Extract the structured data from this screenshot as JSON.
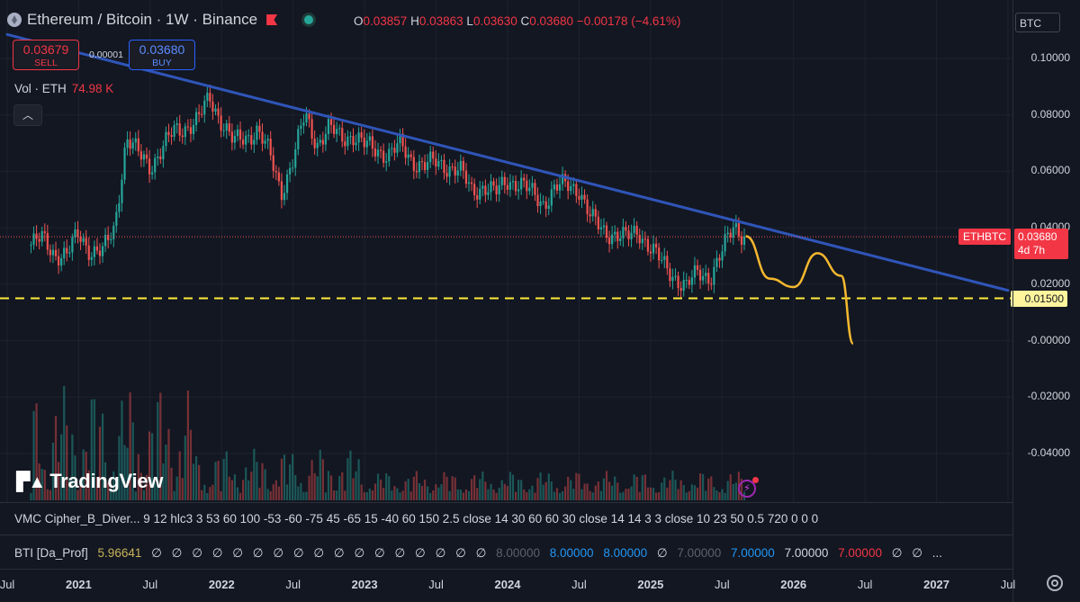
{
  "header": {
    "symbol": "Ethereum",
    "separator": "/",
    "quote": "Bitcoin",
    "interval": "· 1W · Binance",
    "ohlc": {
      "o_label": "O",
      "o": "0.03857",
      "h_label": "H",
      "h": "0.03863",
      "l_label": "L",
      "l": "0.03630",
      "c_label": "C",
      "c": "0.03680",
      "change": "−0.00178 (−4.61%)"
    }
  },
  "trade": {
    "sell_price": "0.03679",
    "sell_label": "SELL",
    "spread": "0.00001",
    "buy_price": "0.03680",
    "buy_label": "BUY"
  },
  "volume": {
    "label": "Vol · ETH",
    "value": "74.98 K"
  },
  "currency_button": "BTC",
  "price_axis": [
    "0.10000",
    "0.08000",
    "0.06000",
    "0.04000",
    "0.02000",
    "-0.00000",
    "-0.02000",
    "-0.04000"
  ],
  "tags": {
    "symbol": "ETHBTC",
    "price": "0.03680",
    "countdown": "4d 7h",
    "support": "0.01500"
  },
  "watermark": "TradingView",
  "indicators": {
    "vmc": "VMC Cipher_B_Diver... 9 12 hlc3 3 53 60 100 -53 -60 -75 45 -65 15 -40 60 150 2.5 close 14 30 60 60 30 close 14 14 3 3 close 10 23 50 0.5 720 0 0 0",
    "bti_name": "BTI [Da_Prof]",
    "bti_first": "5.96641",
    "bti_na": "∅",
    "bti_v1": "8.00000",
    "bti_v2": "8.00000",
    "bti_v3": "8.00000",
    "bti_v4": "7.00000",
    "bti_v5": "7.00000",
    "bti_v6": "7.00000",
    "bti_v7": "7.00000",
    "bti_more": "..."
  },
  "time_axis": [
    {
      "label": "Jul",
      "bold": false
    },
    {
      "label": "2021",
      "bold": true
    },
    {
      "label": "Jul",
      "bold": false
    },
    {
      "label": "2022",
      "bold": true
    },
    {
      "label": "Jul",
      "bold": false
    },
    {
      "label": "2023",
      "bold": true
    },
    {
      "label": "Jul",
      "bold": false
    },
    {
      "label": "2024",
      "bold": true
    },
    {
      "label": "Jul",
      "bold": false
    },
    {
      "label": "2025",
      "bold": true
    },
    {
      "label": "Jul",
      "bold": false
    },
    {
      "label": "2026",
      "bold": true
    },
    {
      "label": "Jul",
      "bold": false
    },
    {
      "label": "2027",
      "bold": true
    },
    {
      "label": "Jul",
      "bold": false
    }
  ],
  "colors": {
    "up": "#26a69a",
    "down": "#ef5350",
    "trendline": "#2f55b8",
    "support": "#ffeb3b",
    "projection": "#f5b82e",
    "background": "#131722"
  },
  "chart_data": {
    "type": "candlestick",
    "title": "Ethereum / Bitcoin · 1W · Binance",
    "ylim": [
      -0.05,
      0.11
    ],
    "x_range": [
      "2020-07",
      "2027-07"
    ],
    "close_series": [
      {
        "t": "2020-09",
        "v": 0.034
      },
      {
        "t": "2020-10",
        "v": 0.036
      },
      {
        "t": "2020-11",
        "v": 0.031
      },
      {
        "t": "2020-12",
        "v": 0.03
      },
      {
        "t": "2021-01",
        "v": 0.038
      },
      {
        "t": "2021-02",
        "v": 0.032
      },
      {
        "t": "2021-03",
        "v": 0.031
      },
      {
        "t": "2021-04",
        "v": 0.04
      },
      {
        "t": "2021-05",
        "v": 0.072
      },
      {
        "t": "2021-06",
        "v": 0.066
      },
      {
        "t": "2021-07",
        "v": 0.062
      },
      {
        "t": "2021-08",
        "v": 0.068
      },
      {
        "t": "2021-09",
        "v": 0.074
      },
      {
        "t": "2021-10",
        "v": 0.076
      },
      {
        "t": "2021-11",
        "v": 0.078
      },
      {
        "t": "2021-12",
        "v": 0.086
      },
      {
        "t": "2022-01",
        "v": 0.078
      },
      {
        "t": "2022-02",
        "v": 0.07
      },
      {
        "t": "2022-03",
        "v": 0.072
      },
      {
        "t": "2022-04",
        "v": 0.075
      },
      {
        "t": "2022-05",
        "v": 0.066
      },
      {
        "t": "2022-06",
        "v": 0.053
      },
      {
        "t": "2022-07",
        "v": 0.064
      },
      {
        "t": "2022-08",
        "v": 0.08
      },
      {
        "t": "2022-09",
        "v": 0.07
      },
      {
        "t": "2022-10",
        "v": 0.075
      },
      {
        "t": "2022-11",
        "v": 0.072
      },
      {
        "t": "2022-12",
        "v": 0.073
      },
      {
        "t": "2023-01",
        "v": 0.069
      },
      {
        "t": "2023-02",
        "v": 0.068
      },
      {
        "t": "2023-03",
        "v": 0.066
      },
      {
        "t": "2023-04",
        "v": 0.069
      },
      {
        "t": "2023-05",
        "v": 0.064
      },
      {
        "t": "2023-06",
        "v": 0.062
      },
      {
        "t": "2023-07",
        "v": 0.063
      },
      {
        "t": "2023-08",
        "v": 0.062
      },
      {
        "t": "2023-09",
        "v": 0.06
      },
      {
        "t": "2023-10",
        "v": 0.053
      },
      {
        "t": "2023-11",
        "v": 0.055
      },
      {
        "t": "2023-12",
        "v": 0.052
      },
      {
        "t": "2024-01",
        "v": 0.057
      },
      {
        "t": "2024-02",
        "v": 0.056
      },
      {
        "t": "2024-03",
        "v": 0.052
      },
      {
        "t": "2024-04",
        "v": 0.049
      },
      {
        "t": "2024-05",
        "v": 0.054
      },
      {
        "t": "2024-06",
        "v": 0.055
      },
      {
        "t": "2024-07",
        "v": 0.054
      },
      {
        "t": "2024-08",
        "v": 0.043
      },
      {
        "t": "2024-09",
        "v": 0.039
      },
      {
        "t": "2024-10",
        "v": 0.038
      },
      {
        "t": "2024-11",
        "v": 0.036
      },
      {
        "t": "2024-12",
        "v": 0.039
      },
      {
        "t": "2025-01",
        "v": 0.033
      },
      {
        "t": "2025-02",
        "v": 0.027
      },
      {
        "t": "2025-03",
        "v": 0.023
      },
      {
        "t": "2025-04",
        "v": 0.019
      },
      {
        "t": "2025-05",
        "v": 0.024
      },
      {
        "t": "2025-06",
        "v": 0.023
      },
      {
        "t": "2025-07",
        "v": 0.031
      },
      {
        "t": "2025-08",
        "v": 0.041
      },
      {
        "t": "2025-09",
        "v": 0.0368
      }
    ],
    "trendline": [
      {
        "t": "2020-07",
        "v": 0.1085
      },
      {
        "t": "2027-07",
        "v": 0.0178
      }
    ],
    "support_level": 0.015,
    "projection": [
      {
        "t": "2025-09",
        "v": 0.037
      },
      {
        "t": "2025-11",
        "v": 0.022
      },
      {
        "t": "2026-01",
        "v": 0.019
      },
      {
        "t": "2026-03",
        "v": 0.031
      },
      {
        "t": "2026-05",
        "v": 0.023
      },
      {
        "t": "2026-06",
        "v": -0.001
      }
    ]
  }
}
